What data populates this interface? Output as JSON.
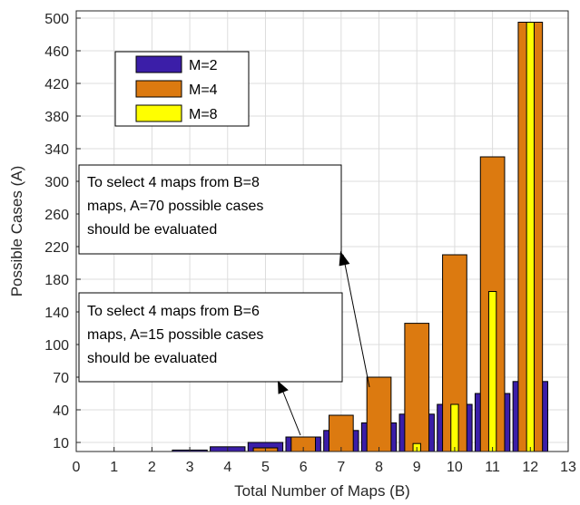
{
  "chart_data": {
    "type": "bar",
    "xlabel": "Total Number of Maps (B)",
    "ylabel": "Possible Cases (A)",
    "xlim": [
      0,
      13
    ],
    "x_ticks": [
      0,
      1,
      2,
      3,
      4,
      5,
      6,
      7,
      8,
      9,
      10,
      11,
      12,
      13
    ],
    "y_ticks": [
      10,
      40,
      70,
      100,
      140,
      180,
      220,
      260,
      300,
      340,
      380,
      420,
      460,
      500
    ],
    "grid": true,
    "legend_position": "top-left",
    "series": [
      {
        "name": "M=2",
        "color": "#3b1ea8",
        "points": [
          {
            "x": 3,
            "y": 3
          },
          {
            "x": 4,
            "y": 6
          },
          {
            "x": 5,
            "y": 10
          },
          {
            "x": 6,
            "y": 15
          },
          {
            "x": 7,
            "y": 21
          },
          {
            "x": 8,
            "y": 28
          },
          {
            "x": 9,
            "y": 36
          },
          {
            "x": 10,
            "y": 45
          },
          {
            "x": 11,
            "y": 55
          },
          {
            "x": 12,
            "y": 66
          }
        ]
      },
      {
        "name": "M=4",
        "color": "#dc7a10",
        "points": [
          {
            "x": 5,
            "y": 5
          },
          {
            "x": 6,
            "y": 15
          },
          {
            "x": 7,
            "y": 35
          },
          {
            "x": 8,
            "y": 70
          },
          {
            "x": 9,
            "y": 126
          },
          {
            "x": 10,
            "y": 210
          },
          {
            "x": 11,
            "y": 330
          },
          {
            "x": 12,
            "y": 495
          }
        ]
      },
      {
        "name": "M=8",
        "color": "#ffff00",
        "points": [
          {
            "x": 9,
            "y": 9
          },
          {
            "x": 10,
            "y": 45
          },
          {
            "x": 11,
            "y": 165
          },
          {
            "x": 12,
            "y": 495
          }
        ]
      }
    ],
    "annotations": [
      {
        "lines": [
          "To select 4 maps from B=8",
          "maps, A=70 possible cases",
          "should be evaluated"
        ],
        "points_to": {
          "x": 8,
          "y": 70
        }
      },
      {
        "lines": [
          "To select 4 maps from B=6",
          "maps, A=15 possible cases",
          "should be evaluated"
        ],
        "points_to": {
          "x": 6,
          "y": 15
        }
      }
    ]
  }
}
